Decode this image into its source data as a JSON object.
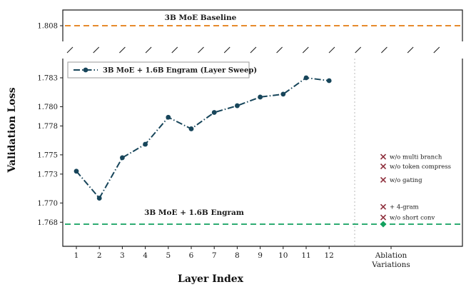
{
  "figure": {
    "ylabel": "Validation Loss",
    "xlabel": "Layer Index"
  },
  "chart_data": {
    "type": "line",
    "ylabel": "Validation Loss",
    "xlabel": "Layer Index",
    "broken_axis": {
      "top_ylim": [
        1.806,
        1.81
      ],
      "top_yticks": [
        1.808
      ],
      "main_ylim": [
        1.7655,
        1.785
      ],
      "main_yticks": [
        1.783,
        1.78,
        1.778,
        1.775,
        1.773,
        1.77,
        1.768
      ]
    },
    "baseline": {
      "label": "3B MoE Baseline",
      "value": 1.808,
      "color": "#e2790f",
      "style": "dashed"
    },
    "reference": {
      "label": "3B MoE + 1.6B Engram",
      "value": 1.7678,
      "color": "#12a15e",
      "style": "dashed"
    },
    "series": [
      {
        "name": "3B MoE + 1.6B Engram (Layer Sweep)",
        "color": "#17455a",
        "style": "dash-dot",
        "marker": "circle",
        "x": [
          1,
          2,
          3,
          4,
          5,
          6,
          7,
          8,
          9,
          10,
          11,
          12
        ],
        "values": [
          1.7733,
          1.7705,
          1.7747,
          1.7761,
          1.7789,
          1.7777,
          1.7794,
          1.7801,
          1.781,
          1.7813,
          1.783,
          1.7827
        ]
      }
    ],
    "ablation": {
      "axis_label_lines": [
        "Ablation",
        "Variations"
      ],
      "marker_color": "#8e2f3c",
      "items": [
        {
          "label": "w/o multi branch",
          "value": 1.7748
        },
        {
          "label": "w/o token compress",
          "value": 1.7738
        },
        {
          "label": "w/o gating",
          "value": 1.7724
        },
        {
          "label": "+ 4-gram",
          "value": 1.7696
        },
        {
          "label": "w/o short conv",
          "value": 1.7685
        }
      ],
      "highlight_point": {
        "value": 1.7678,
        "marker": "diamond",
        "color": "#12a15e"
      }
    },
    "legend": {
      "position": "upper-left",
      "entries": [
        "3B MoE + 1.6B Engram (Layer Sweep)"
      ]
    }
  }
}
